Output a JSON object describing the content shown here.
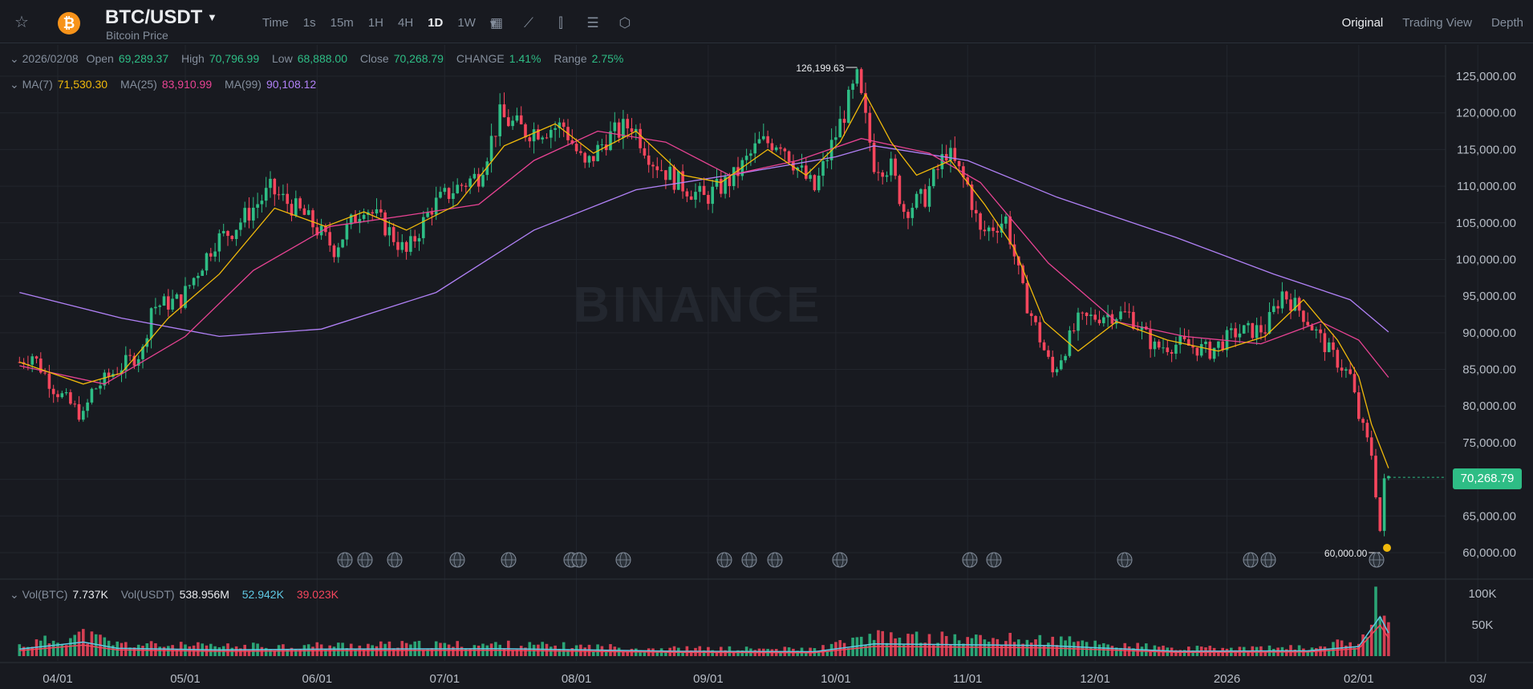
{
  "toolbar": {
    "pair": "BTC/USDT",
    "subtitle": "Bitcoin Price",
    "coin_symbol": "₿",
    "intervals": [
      "Time",
      "1s",
      "15m",
      "1H",
      "4H",
      "1D",
      "1W"
    ],
    "active_interval": "1D",
    "views": [
      "Original",
      "Trading View",
      "Depth"
    ],
    "active_view": "Original",
    "tool_icons": [
      "calendar-icon",
      "indicator-icon",
      "candle-type-icon",
      "settings-icon",
      "more-icon"
    ]
  },
  "ohlc": {
    "date": "2026/02/08",
    "open_label": "Open",
    "open": "69,289.37",
    "high_label": "High",
    "high": "70,796.99",
    "low_label": "Low",
    "low": "68,888.00",
    "close_label": "Close",
    "close": "70,268.79",
    "change_label": "CHANGE",
    "change": "1.41%",
    "range_label": "Range",
    "range": "2.75%"
  },
  "ma": {
    "ma7_label": "MA(7)",
    "ma7": "71,530.30",
    "ma25_label": "MA(25)",
    "ma25": "83,910.99",
    "ma99_label": "MA(99)",
    "ma99": "90,108.12"
  },
  "volume": {
    "vol_btc_label": "Vol(BTC)",
    "vol_btc": "7.737K",
    "vol_usdt_label": "Vol(USDT)",
    "vol_usdt": "538.956M",
    "v1": "52.942K",
    "v2": "39.023K"
  },
  "watermark": "BINANCE",
  "last_price": "70,268.79",
  "colors": {
    "up": "#2ebd85",
    "down": "#f6465d",
    "ma7": "#f0b90b",
    "ma25": "#e84393",
    "ma99": "#b181f7",
    "vol_ma1": "#5fc9e4",
    "vol_ma2": "#f6465d"
  },
  "chart_data": {
    "type": "candlestick",
    "y_range": [
      57000,
      128000
    ],
    "y_ticks": [
      "125,000.00",
      "120,000.00",
      "115,000.00",
      "110,000.00",
      "105,000.00",
      "100,000.00",
      "95,000.00",
      "90,000.00",
      "85,000.00",
      "80,000.00",
      "75,000.00",
      "70,000.00",
      "65,000.00",
      "60,000.00"
    ],
    "y_tick_values": [
      125000,
      120000,
      115000,
      110000,
      105000,
      100000,
      95000,
      90000,
      85000,
      80000,
      75000,
      70000,
      65000,
      60000
    ],
    "x_labels": [
      "04/01",
      "05/01",
      "06/01",
      "07/01",
      "08/01",
      "09/01",
      "10/01",
      "11/01",
      "12/01",
      "2026",
      "02/01",
      "03/"
    ],
    "high_marker": "126,199.63",
    "high_value": 126199.63,
    "low_marker": "60,000.00",
    "low_value": 60000,
    "close_path": [
      [
        "2025-03-23",
        86000
      ],
      [
        "2025-03-26",
        87000
      ],
      [
        "2025-03-31",
        82500
      ],
      [
        "2025-04-07",
        78500
      ],
      [
        "2025-04-09",
        82000
      ],
      [
        "2025-04-15",
        85000
      ],
      [
        "2025-04-21",
        87500
      ],
      [
        "2025-04-23",
        93500
      ],
      [
        "2025-04-30",
        94500
      ],
      [
        "2025-05-08",
        102500
      ],
      [
        "2025-05-12",
        104000
      ],
      [
        "2025-05-21",
        109500
      ],
      [
        "2025-05-29",
        106000
      ],
      [
        "2025-06-05",
        101500
      ],
      [
        "2025-06-12",
        107500
      ],
      [
        "2025-06-17",
        104500
      ],
      [
        "2025-06-22",
        100800
      ],
      [
        "2025-06-28",
        107200
      ],
      [
        "2025-07-03",
        109500
      ],
      [
        "2025-07-09",
        111500
      ],
      [
        "2025-07-14",
        119500
      ],
      [
        "2025-07-20",
        117500
      ],
      [
        "2025-07-29",
        118200
      ],
      [
        "2025-08-03",
        112500
      ],
      [
        "2025-08-08",
        116500
      ],
      [
        "2025-08-14",
        118500
      ],
      [
        "2025-08-19",
        113500
      ],
      [
        "2025-08-25",
        110500
      ],
      [
        "2025-08-31",
        108300
      ],
      [
        "2025-09-07",
        111200
      ],
      [
        "2025-09-13",
        115800
      ],
      [
        "2025-09-18",
        116200
      ],
      [
        "2025-09-22",
        112500
      ],
      [
        "2025-09-26",
        109500
      ],
      [
        "2025-10-02",
        118500
      ],
      [
        "2025-10-06",
        124500
      ],
      [
        "2025-10-10",
        113200
      ],
      [
        "2025-10-14",
        112500
      ],
      [
        "2025-10-17",
        106800
      ],
      [
        "2025-10-22",
        108500
      ],
      [
        "2025-10-27",
        114800
      ],
      [
        "2025-11-01",
        110000
      ],
      [
        "2025-11-04",
        103500
      ],
      [
        "2025-11-10",
        105500
      ],
      [
        "2025-11-14",
        95500
      ],
      [
        "2025-11-21",
        84500
      ],
      [
        "2025-11-27",
        91500
      ],
      [
        "2025-12-03",
        92500
      ],
      [
        "2025-12-09",
        92500
      ],
      [
        "2025-12-15",
        88000
      ],
      [
        "2025-12-21",
        88500
      ],
      [
        "2025-12-28",
        87500
      ],
      [
        "2026-01-03",
        90000
      ],
      [
        "2026-01-10",
        90500
      ],
      [
        "2026-01-14",
        95500
      ],
      [
        "2026-01-19",
        92500
      ],
      [
        "2026-01-25",
        87500
      ],
      [
        "2026-01-30",
        84000
      ],
      [
        "2026-02-01",
        78500
      ],
      [
        "2026-02-04",
        73500
      ],
      [
        "2026-02-06",
        63000
      ],
      [
        "2026-02-07",
        69500
      ],
      [
        "2026-02-08",
        70268.79
      ]
    ],
    "ma7_path": [
      [
        "2025-03-23",
        86000
      ],
      [
        "2025-04-07",
        83000
      ],
      [
        "2025-04-16",
        84500
      ],
      [
        "2025-04-27",
        92000
      ],
      [
        "2025-05-09",
        98000
      ],
      [
        "2025-05-22",
        107000
      ],
      [
        "2025-06-03",
        104500
      ],
      [
        "2025-06-12",
        106500
      ],
      [
        "2025-06-22",
        104000
      ],
      [
        "2025-07-04",
        107500
      ],
      [
        "2025-07-15",
        115500
      ],
      [
        "2025-07-27",
        118500
      ],
      [
        "2025-08-05",
        114500
      ],
      [
        "2025-08-15",
        117500
      ],
      [
        "2025-08-26",
        111500
      ],
      [
        "2025-09-04",
        110500
      ],
      [
        "2025-09-15",
        115000
      ],
      [
        "2025-09-24",
        111500
      ],
      [
        "2025-10-02",
        116000
      ],
      [
        "2025-10-08",
        122500
      ],
      [
        "2025-10-14",
        116000
      ],
      [
        "2025-10-20",
        111500
      ],
      [
        "2025-10-28",
        113500
      ],
      [
        "2025-11-05",
        107500
      ],
      [
        "2025-11-12",
        101500
      ],
      [
        "2025-11-19",
        91500
      ],
      [
        "2025-11-27",
        87500
      ],
      [
        "2025-12-06",
        91500
      ],
      [
        "2025-12-18",
        89000
      ],
      [
        "2025-12-30",
        87500
      ],
      [
        "2026-01-10",
        89500
      ],
      [
        "2026-01-19",
        94500
      ],
      [
        "2026-01-27",
        89000
      ],
      [
        "2026-02-01",
        84000
      ],
      [
        "2026-02-04",
        77500
      ],
      [
        "2026-02-08",
        71530.3
      ]
    ],
    "ma25_path": [
      [
        "2025-03-23",
        85500
      ],
      [
        "2025-04-12",
        83000
      ],
      [
        "2025-05-01",
        89500
      ],
      [
        "2025-05-17",
        98500
      ],
      [
        "2025-06-04",
        104500
      ],
      [
        "2025-06-22",
        106000
      ],
      [
        "2025-07-09",
        107500
      ],
      [
        "2025-07-22",
        113500
      ],
      [
        "2025-08-06",
        117500
      ],
      [
        "2025-08-22",
        116000
      ],
      [
        "2025-09-06",
        111500
      ],
      [
        "2025-09-22",
        113500
      ],
      [
        "2025-10-07",
        116500
      ],
      [
        "2025-10-23",
        114500
      ],
      [
        "2025-11-04",
        110500
      ],
      [
        "2025-11-20",
        99500
      ],
      [
        "2025-12-06",
        91500
      ],
      [
        "2025-12-22",
        89500
      ],
      [
        "2026-01-09",
        88500
      ],
      [
        "2026-01-23",
        91500
      ],
      [
        "2026-02-01",
        89000
      ],
      [
        "2026-02-08",
        83910.99
      ]
    ],
    "ma99_path": [
      [
        "2025-03-23",
        95500
      ],
      [
        "2025-04-16",
        92000
      ],
      [
        "2025-05-09",
        89500
      ],
      [
        "2025-06-02",
        90500
      ],
      [
        "2025-06-29",
        95500
      ],
      [
        "2025-07-22",
        104000
      ],
      [
        "2025-08-15",
        109500
      ],
      [
        "2025-09-06",
        111500
      ],
      [
        "2025-10-01",
        114000
      ],
      [
        "2025-10-10",
        115500
      ],
      [
        "2025-11-01",
        113500
      ],
      [
        "2025-11-22",
        108500
      ],
      [
        "2025-12-20",
        103000
      ],
      [
        "2026-01-12",
        98000
      ],
      [
        "2026-01-30",
        94500
      ],
      [
        "2026-02-08",
        90108.12
      ]
    ],
    "volume_axis_ticks": [
      "100K",
      "50K"
    ],
    "volume_range": [
      0,
      105000
    ],
    "volume_path": [
      [
        "2025-03-23",
        16000
      ],
      [
        "2025-04-07",
        32000
      ],
      [
        "2025-04-15",
        18000
      ],
      [
        "2025-05-09",
        14000
      ],
      [
        "2025-06-05",
        16000
      ],
      [
        "2025-07-14",
        17000
      ],
      [
        "2025-08-25",
        11000
      ],
      [
        "2025-09-26",
        10000
      ],
      [
        "2025-10-10",
        28000
      ],
      [
        "2025-11-20",
        24000
      ],
      [
        "2025-12-20",
        11000
      ],
      [
        "2026-01-20",
        12000
      ],
      [
        "2026-02-01",
        22000
      ],
      [
        "2026-02-06",
        90000
      ],
      [
        "2026-02-08",
        52942
      ]
    ]
  }
}
